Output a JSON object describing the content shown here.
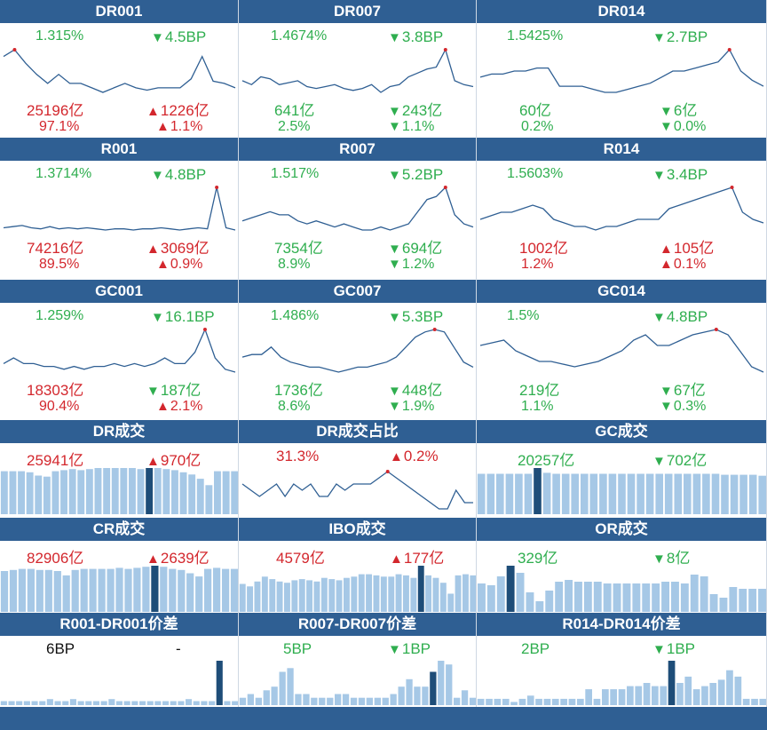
{
  "colors": {
    "header": "#2f5f93",
    "up": "#d3272d",
    "down": "#2fae4f",
    "line": "#2f5f93",
    "bar": "#a6c8e6",
    "bar_highlight": "#1e4d78"
  },
  "rate_panels": [
    {
      "title": "DR001",
      "rate": "1.315%",
      "rate_change": "4.5BP",
      "rate_dir": "down",
      "volume": "25196亿",
      "volume_change": "1226亿",
      "volume_dir": "up",
      "share": "97.1%",
      "share_change": "1.1%",
      "share_dir": "up",
      "volume_color": "red",
      "share_color": "red",
      "line": [
        1.37,
        1.385,
        1.355,
        1.33,
        1.31,
        1.33,
        1.31,
        1.31,
        1.3,
        1.29,
        1.3,
        1.31,
        1.3,
        1.295,
        1.3,
        1.3,
        1.3,
        1.32,
        1.37,
        1.315,
        1.31,
        1.3
      ]
    },
    {
      "title": "DR007",
      "rate": "1.4674%",
      "rate_change": "3.8BP",
      "rate_dir": "down",
      "volume": "641亿",
      "volume_change": "243亿",
      "volume_dir": "down",
      "share": "2.5%",
      "share_change": "1.1%",
      "share_dir": "down",
      "volume_color": "green",
      "share_color": "green",
      "line": [
        1.45,
        1.44,
        1.46,
        1.455,
        1.44,
        1.445,
        1.45,
        1.435,
        1.43,
        1.435,
        1.44,
        1.43,
        1.425,
        1.43,
        1.44,
        1.42,
        1.435,
        1.44,
        1.46,
        1.47,
        1.48,
        1.485,
        1.53,
        1.45,
        1.44,
        1.435
      ]
    },
    {
      "title": "DR014",
      "rate": "1.5425%",
      "rate_change": "2.7BP",
      "rate_dir": "down",
      "volume": "60亿",
      "volume_change": "6亿",
      "volume_dir": "down",
      "share": "0.2%",
      "share_change": "0.0%",
      "share_dir": "down",
      "volume_color": "green",
      "share_color": "green",
      "line": [
        1.53,
        1.54,
        1.54,
        1.55,
        1.55,
        1.56,
        1.56,
        1.5,
        1.5,
        1.5,
        1.49,
        1.48,
        1.48,
        1.49,
        1.5,
        1.51,
        1.53,
        1.55,
        1.55,
        1.56,
        1.57,
        1.58,
        1.62,
        1.55,
        1.52,
        1.5
      ]
    },
    {
      "title": "R001",
      "rate": "1.3714%",
      "rate_change": "4.8BP",
      "rate_dir": "down",
      "volume": "74216亿",
      "volume_change": "3069亿",
      "volume_dir": "up",
      "share": "89.5%",
      "share_change": "0.9%",
      "share_dir": "up",
      "volume_color": "red",
      "share_color": "red",
      "line": [
        1.34,
        1.345,
        1.35,
        1.34,
        1.335,
        1.345,
        1.335,
        1.34,
        1.335,
        1.34,
        1.335,
        1.33,
        1.335,
        1.335,
        1.33,
        1.335,
        1.335,
        1.34,
        1.335,
        1.33,
        1.335,
        1.34,
        1.335,
        1.52,
        1.34,
        1.33
      ]
    },
    {
      "title": "R007",
      "rate": "1.517%",
      "rate_change": "5.2BP",
      "rate_dir": "down",
      "volume": "7354亿",
      "volume_change": "694亿",
      "volume_dir": "down",
      "share": "8.9%",
      "share_change": "1.2%",
      "share_dir": "down",
      "volume_color": "green",
      "share_color": "green",
      "line": [
        1.45,
        1.46,
        1.47,
        1.48,
        1.47,
        1.47,
        1.45,
        1.44,
        1.45,
        1.44,
        1.43,
        1.44,
        1.43,
        1.42,
        1.42,
        1.43,
        1.42,
        1.43,
        1.44,
        1.48,
        1.52,
        1.53,
        1.56,
        1.47,
        1.44,
        1.43
      ]
    },
    {
      "title": "R014",
      "rate": "1.5603%",
      "rate_change": "3.4BP",
      "rate_dir": "down",
      "volume": "1002亿",
      "volume_change": "105亿",
      "volume_dir": "up",
      "share": "1.2%",
      "share_change": "0.1%",
      "share_dir": "up",
      "volume_color": "red",
      "share_color": "red",
      "line": [
        1.55,
        1.56,
        1.57,
        1.57,
        1.58,
        1.59,
        1.58,
        1.55,
        1.54,
        1.53,
        1.53,
        1.52,
        1.53,
        1.53,
        1.54,
        1.55,
        1.55,
        1.55,
        1.58,
        1.59,
        1.6,
        1.61,
        1.62,
        1.63,
        1.64,
        1.57,
        1.55,
        1.54
      ]
    },
    {
      "title": "GC001",
      "rate": "1.259%",
      "rate_change": "16.1BP",
      "rate_dir": "down",
      "volume": "18303亿",
      "volume_change": "187亿",
      "volume_dir": "down",
      "share": "90.4%",
      "share_change": "2.1%",
      "share_dir": "up",
      "volume_color": "red",
      "share_color": "red",
      "line": [
        1.2,
        1.21,
        1.2,
        1.2,
        1.195,
        1.195,
        1.19,
        1.195,
        1.19,
        1.195,
        1.195,
        1.2,
        1.195,
        1.2,
        1.195,
        1.2,
        1.21,
        1.2,
        1.2,
        1.22,
        1.26,
        1.21,
        1.19,
        1.185
      ]
    },
    {
      "title": "GC007",
      "rate": "1.486%",
      "rate_change": "5.3BP",
      "rate_dir": "down",
      "volume": "1736亿",
      "volume_change": "448亿",
      "volume_dir": "down",
      "share": "8.6%",
      "share_change": "1.9%",
      "share_dir": "down",
      "volume_color": "green",
      "share_color": "green",
      "line": [
        1.44,
        1.445,
        1.445,
        1.46,
        1.44,
        1.43,
        1.425,
        1.42,
        1.42,
        1.415,
        1.41,
        1.415,
        1.42,
        1.42,
        1.425,
        1.43,
        1.44,
        1.46,
        1.48,
        1.49,
        1.495,
        1.49,
        1.46,
        1.43,
        1.42
      ]
    },
    {
      "title": "GC014",
      "rate": "1.5%",
      "rate_change": "4.8BP",
      "rate_dir": "down",
      "volume": "219亿",
      "volume_change": "67亿",
      "volume_dir": "down",
      "share": "1.1%",
      "share_change": "0.3%",
      "share_dir": "down",
      "volume_color": "green",
      "share_color": "green",
      "line": [
        1.47,
        1.475,
        1.48,
        1.46,
        1.45,
        1.44,
        1.44,
        1.435,
        1.43,
        1.435,
        1.44,
        1.45,
        1.46,
        1.48,
        1.49,
        1.47,
        1.47,
        1.48,
        1.49,
        1.495,
        1.5,
        1.49,
        1.46,
        1.43,
        1.42
      ]
    }
  ],
  "volume_panels": [
    {
      "title": "DR成交",
      "value": "25941亿",
      "value_color": "red",
      "change": "970亿",
      "change_dir": "up",
      "chart": "bar",
      "highlight": 17,
      "values": [
        80,
        80,
        80,
        78,
        72,
        70,
        80,
        82,
        84,
        82,
        84,
        86,
        86,
        86,
        86,
        86,
        84,
        86,
        86,
        84,
        82,
        78,
        74,
        66,
        54,
        80,
        80,
        80
      ]
    },
    {
      "title": "DR成交占比",
      "value": "31.3%",
      "value_color": "red",
      "change": "0.2%",
      "change_dir": "up",
      "chart": "line",
      "highlight": 17,
      "values": [
        96,
        95,
        94,
        95,
        96,
        94,
        96,
        95,
        96,
        94,
        94,
        96,
        95,
        96,
        96,
        96,
        97,
        98,
        97,
        96,
        95,
        94,
        93,
        92,
        92,
        95,
        93,
        93
      ]
    },
    {
      "title": "GC成交",
      "value": "20257亿",
      "value_color": "green",
      "change": "702亿",
      "change_dir": "down",
      "chart": "bar",
      "highlight": 6,
      "values": [
        84,
        84,
        84,
        84,
        84,
        84,
        96,
        86,
        84,
        84,
        84,
        84,
        84,
        84,
        84,
        84,
        84,
        84,
        84,
        84,
        84,
        84,
        84,
        84,
        84,
        84,
        82,
        82,
        82,
        82,
        80
      ]
    },
    {
      "title": "CR成交",
      "value": "82906亿",
      "value_color": "red",
      "change": "2639亿",
      "change_dir": "up",
      "chart": "bar",
      "highlight": 17,
      "values": [
        76,
        78,
        80,
        80,
        78,
        78,
        76,
        68,
        78,
        80,
        80,
        80,
        80,
        82,
        80,
        82,
        84,
        86,
        84,
        80,
        78,
        72,
        66,
        80,
        82,
        80,
        80
      ]
    },
    {
      "title": "IBO成交",
      "value": "4579亿",
      "value_color": "red",
      "change": "177亿",
      "change_dir": "up",
      "chart": "bar",
      "highlight": 24,
      "values": [
        46,
        42,
        50,
        58,
        54,
        50,
        48,
        52,
        54,
        52,
        50,
        56,
        54,
        52,
        56,
        58,
        62,
        62,
        60,
        58,
        58,
        62,
        60,
        56,
        76,
        60,
        56,
        48,
        30,
        60,
        62,
        60
      ]
    },
    {
      "title": "OR成交",
      "value": "329亿",
      "value_color": "green",
      "change": "8亿",
      "change_dir": "down",
      "chart": "bar",
      "highlight": 3,
      "values": [
        32,
        30,
        40,
        52,
        44,
        22,
        12,
        24,
        34,
        36,
        34,
        34,
        34,
        32,
        32,
        32,
        32,
        32,
        32,
        34,
        34,
        32,
        42,
        40,
        20,
        16,
        28,
        26,
        26,
        26
      ]
    }
  ],
  "spread_panels": [
    {
      "title": "R001-DR001价差",
      "value": "6BP",
      "value_color": "black",
      "change": "-",
      "change_dir": "none",
      "highlight": 28,
      "values": [
        2,
        2,
        2,
        2,
        2,
        2,
        3,
        2,
        2,
        3,
        2,
        2,
        2,
        2,
        3,
        2,
        2,
        2,
        2,
        2,
        2,
        2,
        2,
        2,
        3,
        2,
        2,
        2,
        22,
        2,
        2
      ]
    },
    {
      "title": "R007-DR007价差",
      "value": "5BP",
      "value_color": "green",
      "change": "1BP",
      "change_dir": "down",
      "highlight": 24,
      "values": [
        2,
        3,
        2,
        4,
        5,
        9,
        10,
        3,
        3,
        2,
        2,
        2,
        3,
        3,
        2,
        2,
        2,
        2,
        2,
        3,
        5,
        7,
        5,
        5,
        9,
        12,
        11,
        2,
        4,
        2
      ]
    },
    {
      "title": "R014-DR014价差",
      "value": "2BP",
      "value_color": "green",
      "change": "1BP",
      "change_dir": "down",
      "highlight": 23,
      "values": [
        2,
        2,
        2,
        2,
        1,
        2,
        3,
        2,
        2,
        2,
        2,
        2,
        2,
        5,
        2,
        5,
        5,
        5,
        6,
        6,
        7,
        6,
        6,
        14,
        7,
        9,
        5,
        6,
        7,
        8,
        11,
        9,
        2,
        2,
        2
      ]
    }
  ]
}
